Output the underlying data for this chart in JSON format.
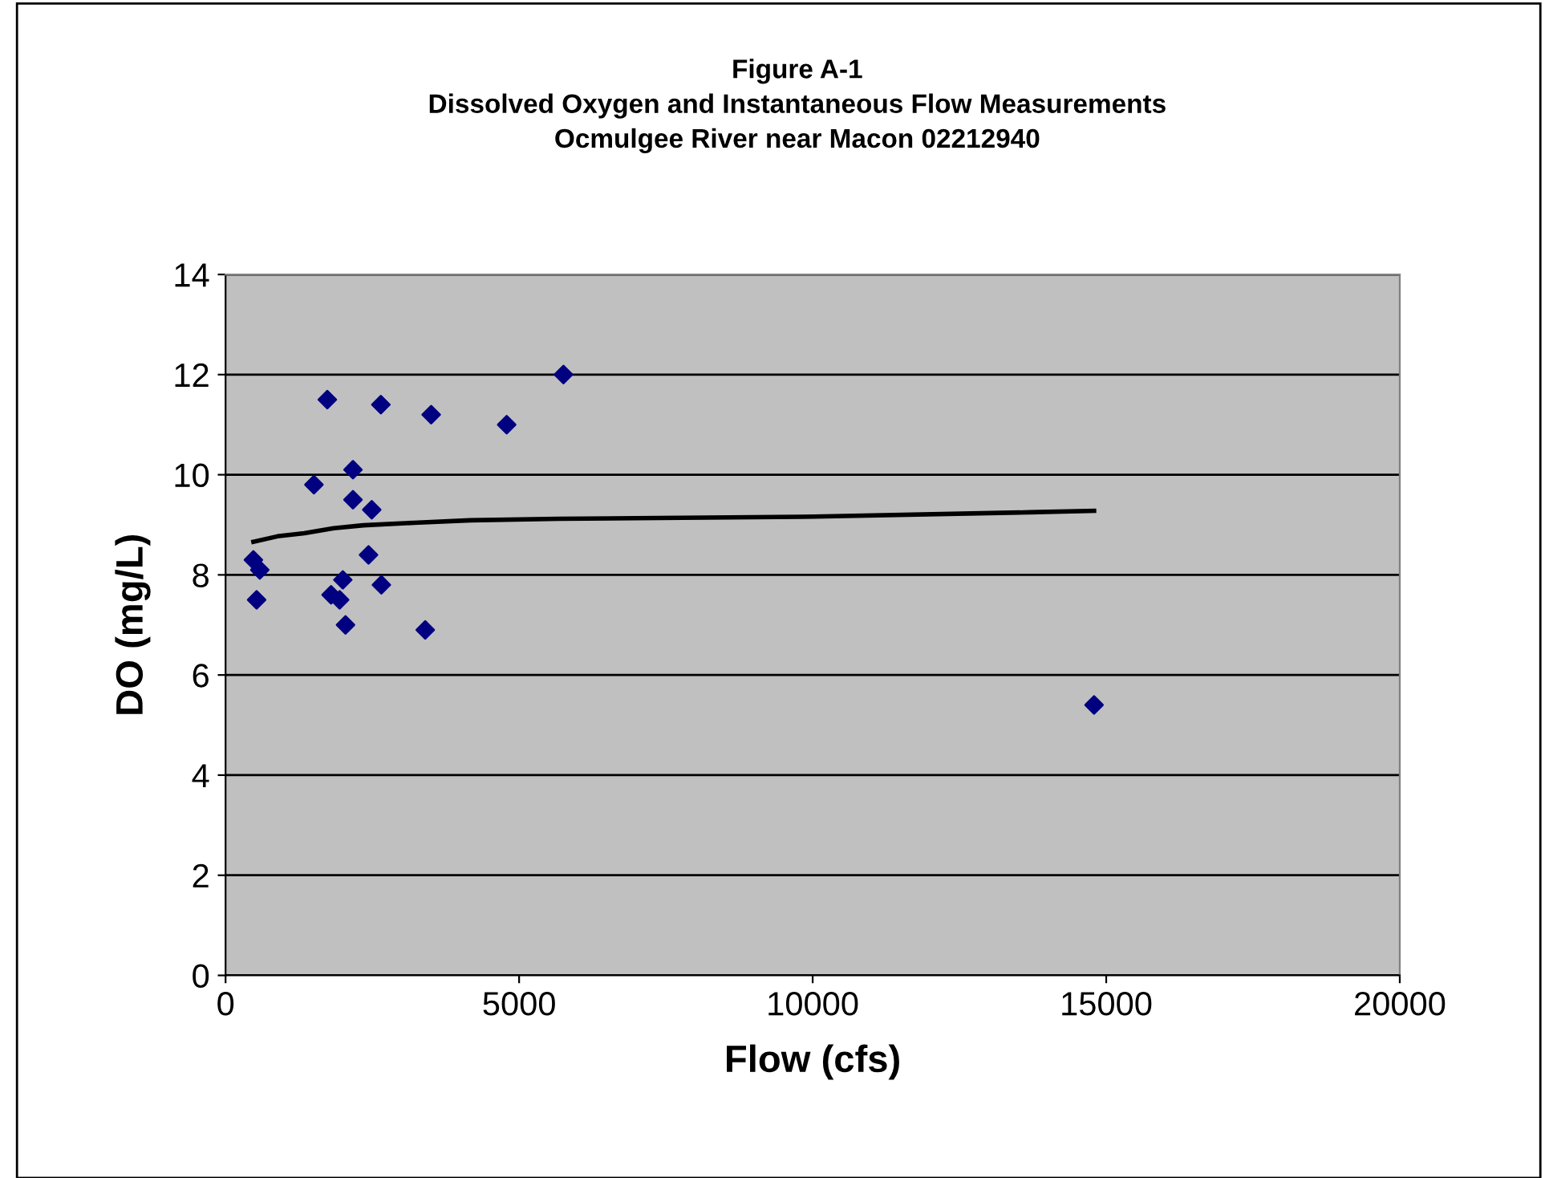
{
  "chart_data": {
    "type": "scatter",
    "title": "Figure A-1\nDissolved Oxygen and Instantaneous Flow Measurements\nOcmulgee River near Macon 02212940",
    "xlabel": "Flow (cfs)",
    "ylabel": "DO (mg/L)",
    "series": [
      {
        "color": "#000080",
        "marker": "diamond",
        "x": [
          474,
          583,
          529,
          1733,
          2645,
          3502,
          4788,
          5755,
          2170,
          1505,
          2170,
          2490,
          2435,
          1997,
          2654,
          1797,
          1943,
          2043,
          3401,
          14793
        ],
        "values": [
          8.3,
          8.1,
          7.5,
          11.5,
          11.4,
          11.2,
          11.0,
          12.0,
          10.1,
          9.8,
          9.5,
          9.3,
          8.4,
          7.9,
          7.8,
          7.6,
          7.5,
          7.0,
          6.9,
          5.4
        ]
      },
      {
        "type": "line",
        "color": "#000000",
        "marker": "none",
        "x": [
          474,
          884,
          1340,
          1842,
          2343,
          3210,
          4167,
          5672,
          9822,
          13699,
          14793
        ],
        "values": [
          8.66,
          8.77,
          8.83,
          8.93,
          8.99,
          9.04,
          9.09,
          9.12,
          9.16,
          9.25,
          9.28
        ]
      }
    ],
    "xlim": [
      0,
      20000
    ],
    "xticks": [
      0,
      5000,
      10000,
      15000,
      20000
    ],
    "ylim": [
      0,
      14
    ],
    "yticks": [
      0,
      2,
      4,
      6,
      8,
      10,
      12,
      14
    ],
    "grid": "y",
    "legend": false
  }
}
